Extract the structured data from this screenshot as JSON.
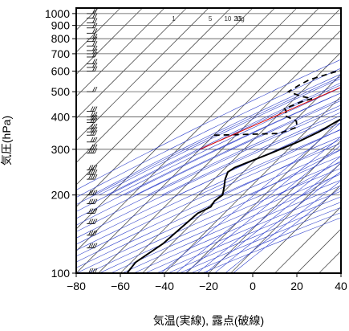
{
  "chart_data": {
    "type": "line",
    "xlabel": "気温(実線), 露点(破線)",
    "ylabel": "気圧(hPa)",
    "x_axis": {
      "min": -80,
      "max": 40,
      "ticks": [
        -80,
        -60,
        -40,
        -20,
        0,
        20,
        40
      ]
    },
    "y_axis": {
      "scale": "log",
      "min": 1050,
      "max": 100,
      "ticks": [
        100,
        200,
        300,
        400,
        500,
        600,
        700,
        800,
        900,
        1000
      ]
    },
    "mixing_ratio_labels": [
      "1",
      "5",
      "10",
      "15",
      "20g"
    ],
    "grid": true,
    "colors": {
      "temperature": "#000000",
      "dewpoint": "#000000",
      "adiabats": "#3344cc",
      "parcel": "#dd0000",
      "grid": "#555555",
      "wind": "#000000"
    },
    "series": [
      {
        "style": "solid",
        "points": [
          [
            100,
            -57
          ],
          [
            110,
            -58
          ],
          [
            130,
            -54
          ],
          [
            150,
            -53
          ],
          [
            170,
            -52
          ],
          [
            180,
            -49
          ],
          [
            190,
            -50
          ],
          [
            200,
            -49
          ],
          [
            215,
            -52
          ],
          [
            230,
            -55
          ],
          [
            245,
            -57
          ],
          [
            255,
            -56
          ],
          [
            265,
            -53
          ],
          [
            290,
            -46
          ],
          [
            320,
            -39
          ],
          [
            350,
            -34
          ],
          [
            380,
            -31
          ],
          [
            400,
            -29
          ],
          [
            420,
            -28
          ],
          [
            450,
            -27
          ],
          [
            480,
            -25
          ],
          [
            500,
            -25
          ],
          [
            550,
            -24
          ],
          [
            600,
            -24
          ],
          [
            650,
            -25
          ],
          [
            690,
            -25
          ],
          [
            700,
            -23
          ],
          [
            720,
            -23
          ],
          [
            760,
            -20
          ],
          [
            800,
            -17
          ],
          [
            850,
            -13
          ],
          [
            900,
            -10
          ],
          [
            950,
            -6
          ],
          [
            1000,
            -2
          ],
          [
            1023,
            0
          ]
        ]
      },
      {
        "style": "dashed",
        "points": [
          [
            340,
            -80
          ],
          [
            345,
            -52
          ],
          [
            350,
            -50
          ],
          [
            365,
            -46
          ],
          [
            385,
            -49
          ],
          [
            405,
            -57
          ],
          [
            420,
            -58
          ],
          [
            430,
            -60
          ],
          [
            460,
            -55
          ],
          [
            470,
            -52
          ],
          [
            480,
            -58
          ],
          [
            500,
            -66
          ],
          [
            530,
            -64
          ],
          [
            555,
            -62
          ],
          [
            600,
            -53
          ],
          [
            620,
            -49
          ],
          [
            645,
            -46
          ],
          [
            665,
            -38
          ],
          [
            680,
            -29
          ],
          [
            690,
            -26
          ],
          [
            700,
            -25
          ],
          [
            720,
            -27
          ],
          [
            750,
            -23
          ],
          [
            800,
            -17
          ],
          [
            850,
            -14
          ],
          [
            900,
            -12
          ],
          [
            920,
            -14
          ],
          [
            950,
            -11
          ],
          [
            1000,
            -5
          ],
          [
            1023,
            0
          ]
        ]
      },
      {
        "style": "thin",
        "points": [
          [
            300,
            -80
          ],
          [
            1023,
            0
          ]
        ]
      }
    ],
    "wind_barb_levels": [
      100,
      125,
      140,
      155,
      170,
      185,
      200,
      230,
      240,
      250,
      290,
      300,
      320,
      340,
      350,
      360,
      380,
      390,
      400,
      420,
      500,
      600,
      620,
      640,
      680,
      700,
      720,
      750,
      780,
      800,
      840,
      880,
      920,
      960,
      1000
    ]
  }
}
